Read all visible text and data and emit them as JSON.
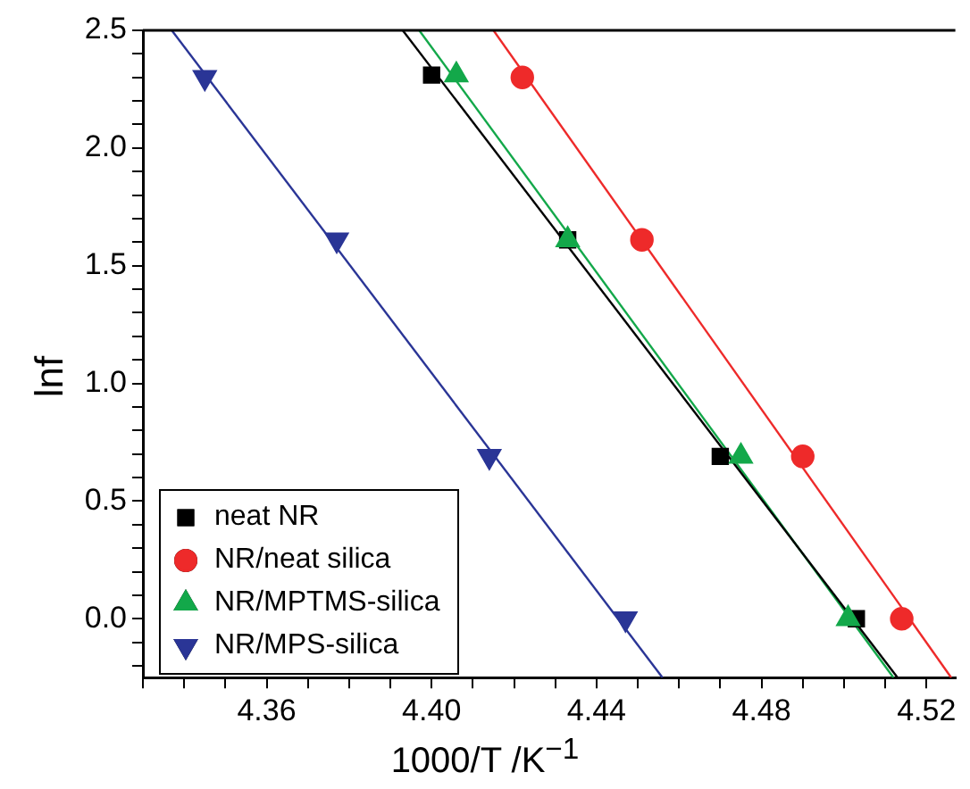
{
  "chart_data": {
    "type": "scatter",
    "xlabel": "1000/T /K$^{−1}$",
    "ylabel": "lnf",
    "xlim": [
      4.33,
      4.527
    ],
    "ylim": [
      -0.25,
      2.5
    ],
    "xticks": [
      {
        "value": 4.33,
        "label": null
      },
      {
        "value": 4.34,
        "label": null
      },
      {
        "value": 4.35,
        "label": null
      },
      {
        "value": 4.36,
        "label": "4.36"
      },
      {
        "value": 4.37,
        "label": null
      },
      {
        "value": 4.38,
        "label": null
      },
      {
        "value": 4.39,
        "label": null
      },
      {
        "value": 4.4,
        "label": "4.40"
      },
      {
        "value": 4.41,
        "label": null
      },
      {
        "value": 4.42,
        "label": null
      },
      {
        "value": 4.43,
        "label": null
      },
      {
        "value": 4.44,
        "label": "4.44"
      },
      {
        "value": 4.45,
        "label": null
      },
      {
        "value": 4.46,
        "label": null
      },
      {
        "value": 4.47,
        "label": null
      },
      {
        "value": 4.48,
        "label": "4.48"
      },
      {
        "value": 4.49,
        "label": null
      },
      {
        "value": 4.5,
        "label": null
      },
      {
        "value": 4.51,
        "label": null
      },
      {
        "value": 4.52,
        "label": "4.52"
      }
    ],
    "yticks": [
      {
        "value": -0.2,
        "label": null
      },
      {
        "value": -0.1,
        "label": null
      },
      {
        "value": 0,
        "label": "0.0"
      },
      {
        "value": 0.1,
        "label": null
      },
      {
        "value": 0.2,
        "label": null
      },
      {
        "value": 0.3,
        "label": null
      },
      {
        "value": 0.4,
        "label": null
      },
      {
        "value": 0.5,
        "label": "0.5"
      },
      {
        "value": 0.6,
        "label": null
      },
      {
        "value": 0.7,
        "label": null
      },
      {
        "value": 0.8,
        "label": null
      },
      {
        "value": 0.9,
        "label": null
      },
      {
        "value": 1,
        "label": "1.0"
      },
      {
        "value": 1.1,
        "label": null
      },
      {
        "value": 1.2,
        "label": null
      },
      {
        "value": 1.3,
        "label": null
      },
      {
        "value": 1.4,
        "label": null
      },
      {
        "value": 1.5,
        "label": "1.5"
      },
      {
        "value": 1.6,
        "label": null
      },
      {
        "value": 1.7,
        "label": null
      },
      {
        "value": 1.8,
        "label": null
      },
      {
        "value": 1.9,
        "label": null
      },
      {
        "value": 2,
        "label": "2.0"
      },
      {
        "value": 2.1,
        "label": null
      },
      {
        "value": 2.2,
        "label": null
      },
      {
        "value": 2.3,
        "label": null
      },
      {
        "value": 2.4,
        "label": null
      },
      {
        "value": 2.5,
        "label": "2.5"
      }
    ],
    "grid": false,
    "legend": "bottom left",
    "series": [
      {
        "name": "neat NR",
        "color": "#000000",
        "marker": "square",
        "x": [
          4.4,
          4.433,
          4.47,
          4.503
        ],
        "values": [
          2.31,
          1.61,
          0.69,
          0.0
        ]
      },
      {
        "name": "NR/neat silica",
        "color": "#ee2a2a",
        "marker": "circle",
        "x": [
          4.422,
          4.451,
          4.49,
          4.514
        ],
        "values": [
          2.3,
          1.61,
          0.69,
          0.0
        ]
      },
      {
        "name": "NR/MPTMS-silica",
        "color": "#13a84a",
        "marker": "triangle",
        "x": [
          4.406,
          4.433,
          4.475,
          4.501
        ],
        "values": [
          2.31,
          1.61,
          0.69,
          0.0
        ]
      },
      {
        "name": "NR/MPS-silica",
        "color": "#2a3596",
        "marker": "triangle-down",
        "x": [
          4.345,
          4.377,
          4.414,
          4.447
        ],
        "values": [
          2.3,
          1.61,
          0.69,
          0.0
        ]
      },
      {
        "type": "line",
        "color": "#000000",
        "marker": "none",
        "x": [
          4.393,
          4.513
        ],
        "values": [
          2.5,
          -0.25
        ]
      },
      {
        "type": "line",
        "color": "#ee2a2a",
        "marker": "none",
        "x": [
          4.415,
          4.526
        ],
        "values": [
          2.5,
          -0.25
        ]
      },
      {
        "type": "line",
        "color": "#13a84a",
        "marker": "none",
        "x": [
          4.397,
          4.512
        ],
        "values": [
          2.5,
          -0.25
        ]
      },
      {
        "type": "line",
        "color": "#2a3596",
        "marker": "none",
        "x": [
          4.337,
          4.456
        ],
        "values": [
          2.5,
          -0.25
        ]
      }
    ]
  }
}
